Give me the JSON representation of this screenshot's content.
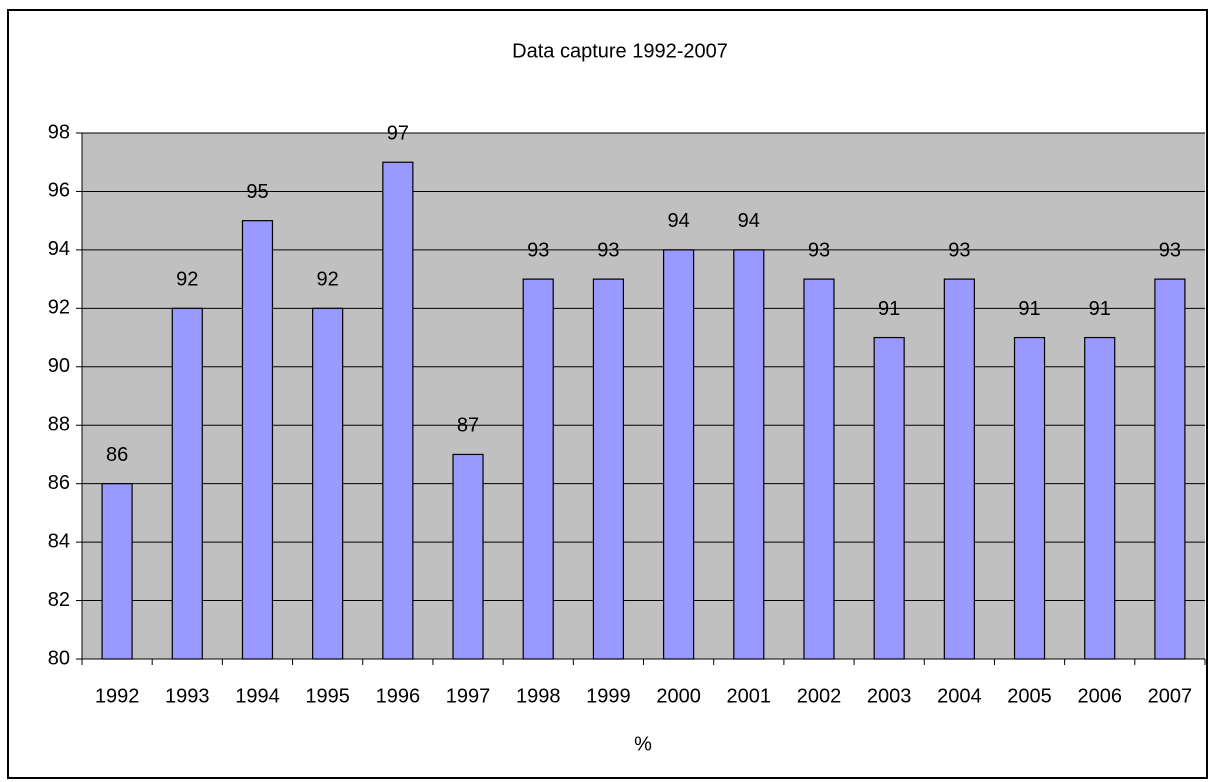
{
  "chart_data": {
    "type": "bar",
    "title": "Data capture 1992-2007",
    "x_label": "%",
    "categories": [
      "1992",
      "1993",
      "1994",
      "1995",
      "1996",
      "1997",
      "1998",
      "1999",
      "2000",
      "2001",
      "2002",
      "2003",
      "2004",
      "2005",
      "2006",
      "2007"
    ],
    "values": [
      86,
      92,
      95,
      92,
      97,
      87,
      93,
      93,
      94,
      94,
      93,
      91,
      93,
      91,
      91,
      93
    ],
    "color": "#9999ff",
    "plot_background": "#c0c0c0",
    "ylim": [
      80,
      98
    ],
    "yticks": [
      80,
      82,
      84,
      86,
      88,
      90,
      92,
      94,
      96,
      98
    ],
    "grid": true
  }
}
